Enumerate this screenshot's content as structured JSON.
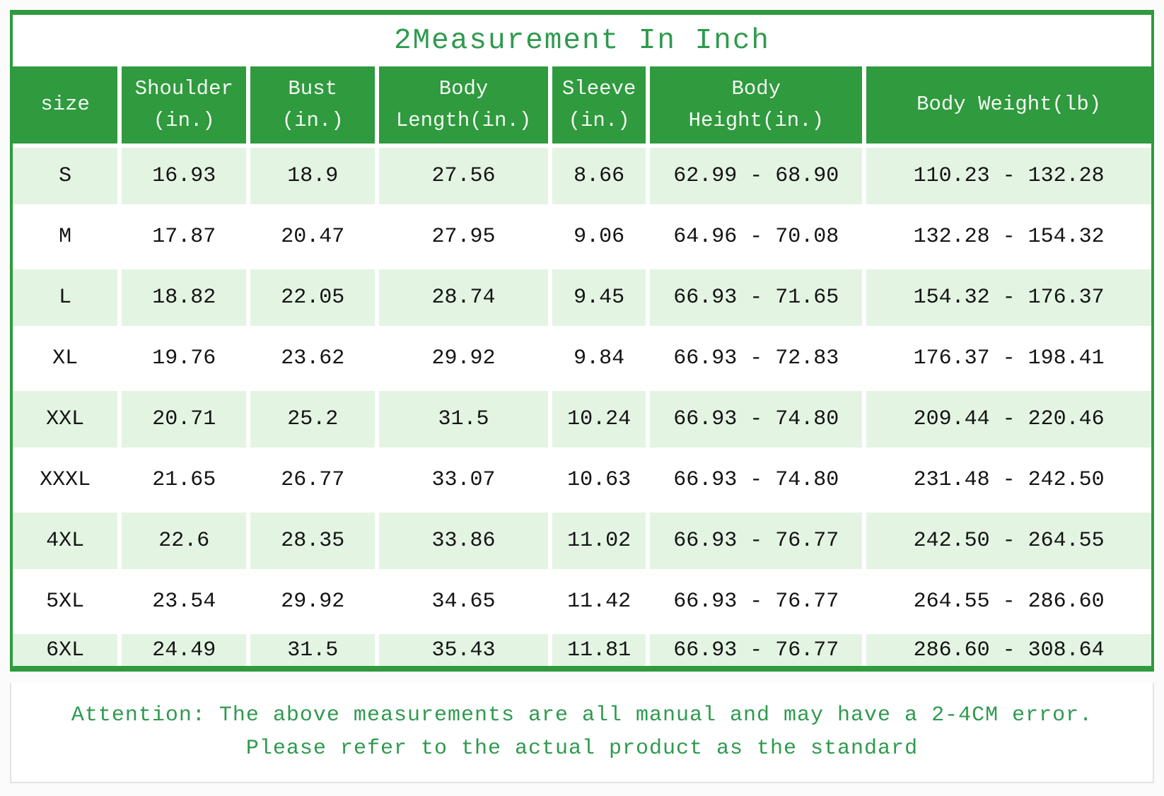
{
  "title": "2Measurement In Inch",
  "colors": {
    "header_green": "#2f9a3e",
    "row_light_green": "#e3f4e3",
    "accent_text_green": "#2f9a4e",
    "data_text": "#141414"
  },
  "table": {
    "headers": [
      "size",
      "Shoulder\n(in.)",
      "Bust\n(in.)",
      "Body\nLength(in.)",
      "Sleeve\n(in.)",
      "Body\nHeight(in.)",
      "Body Weight(lb)"
    ],
    "rows": [
      {
        "cells": [
          "S",
          "16.93",
          "18.9",
          "27.56",
          "8.66",
          "62.99 - 68.90",
          "110.23 - 132.28"
        ]
      },
      {
        "cells": [
          "M",
          "17.87",
          "20.47",
          "27.95",
          "9.06",
          "64.96 - 70.08",
          "132.28 - 154.32"
        ]
      },
      {
        "cells": [
          "L",
          "18.82",
          "22.05",
          "28.74",
          "9.45",
          "66.93 - 71.65",
          "154.32 - 176.37"
        ]
      },
      {
        "cells": [
          "XL",
          "19.76",
          "23.62",
          "29.92",
          "9.84",
          "66.93 - 72.83",
          "176.37 - 198.41"
        ]
      },
      {
        "cells": [
          "XXL",
          "20.71",
          "25.2",
          "31.5",
          "10.24",
          "66.93 - 74.80",
          "209.44 - 220.46"
        ]
      },
      {
        "cells": [
          "XXXL",
          "21.65",
          "26.77",
          "33.07",
          "10.63",
          "66.93 - 74.80",
          "231.48 - 242.50"
        ]
      },
      {
        "cells": [
          "4XL",
          "22.6",
          "28.35",
          "33.86",
          "11.02",
          "66.93 - 76.77",
          "242.50 - 264.55"
        ]
      },
      {
        "cells": [
          "5XL",
          "23.54",
          "29.92",
          "34.65",
          "11.42",
          "66.93 - 76.77",
          "264.55 - 286.60"
        ]
      },
      {
        "cells": [
          "6XL",
          "24.49",
          "31.5",
          "35.43",
          "11.81",
          "66.93 - 76.77",
          "286.60 - 308.64"
        ]
      }
    ]
  },
  "attention": {
    "line1": "Attention: The above measurements are all manual and may have a 2-4CM error.",
    "line2": "Please refer to the actual product as the standard"
  }
}
